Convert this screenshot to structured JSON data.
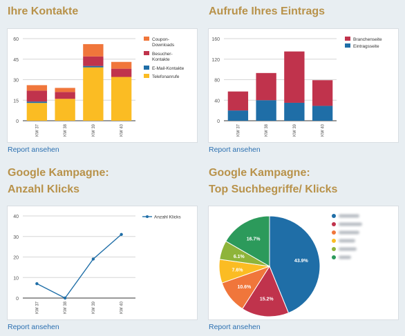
{
  "sections": {
    "contacts": {
      "title": "Ihre Kontakte",
      "link": "Report ansehen"
    },
    "views": {
      "title": "Aufrufe Ihres Eintrags",
      "link": "Report ansehen"
    },
    "clicks": {
      "title_line1": "Google Kampagne:",
      "title_line2": "Anzahl Klicks",
      "link": "Report ansehen"
    },
    "terms": {
      "title_line1": "Google Kampagne:",
      "title_line2": "Top Suchbegriffe/ Klicks",
      "link": "Report ansehen"
    }
  },
  "chart_data": [
    {
      "id": "contacts",
      "type": "bar",
      "stacked": true,
      "categories": [
        "KW 37",
        "KW 38",
        "KW 39",
        "KW 40"
      ],
      "ylim": [
        0,
        60
      ],
      "yticks": [
        0,
        15,
        30,
        45,
        60
      ],
      "legend_position": "right",
      "series": [
        {
          "name": "Telefonanrufe",
          "color": "#fbbc23",
          "values": [
            13,
            16,
            39,
            32
          ]
        },
        {
          "name": "E-Mail-Kontakte",
          "color": "#1f6ea7",
          "values": [
            1,
            0,
            1,
            0
          ]
        },
        {
          "name": "Besucher-Kontakte",
          "color": "#c0334c",
          "values": [
            8,
            5,
            7,
            6
          ]
        },
        {
          "name": "Coupon-Downloads",
          "color": "#f0763b",
          "values": [
            4,
            3,
            9,
            5
          ]
        }
      ],
      "legend_order": [
        3,
        2,
        1,
        0
      ],
      "legend_labels": [
        [
          "Coupon-",
          "Downloads"
        ],
        [
          "Besucher-",
          "Kontakte"
        ],
        [
          "E-Mail-Kontakte"
        ],
        [
          "Telefonanrufe"
        ]
      ]
    },
    {
      "id": "views",
      "type": "bar",
      "stacked": true,
      "categories": [
        "KW 37",
        "KW 38",
        "KW 39",
        "KW 40"
      ],
      "ylim": [
        0,
        160
      ],
      "yticks": [
        0,
        40,
        80,
        120,
        160
      ],
      "legend_position": "top-right",
      "series": [
        {
          "name": "Eintragsseite",
          "color": "#1f6ea7",
          "values": [
            20,
            40,
            35,
            29
          ]
        },
        {
          "name": "Branchenseite",
          "color": "#c0334c",
          "values": [
            37,
            53,
            100,
            50
          ]
        }
      ],
      "legend_order": [
        1,
        0
      ],
      "legend_labels": [
        [
          "Branchenseite"
        ],
        [
          "Eintragsseite"
        ]
      ]
    },
    {
      "id": "clicks",
      "type": "line",
      "categories": [
        "KW 37",
        "KW 38",
        "KW 39",
        "KW 40"
      ],
      "ylim": [
        0,
        40
      ],
      "yticks": [
        0,
        10,
        20,
        30,
        40
      ],
      "legend_position": "top-right",
      "series": [
        {
          "name": "Anzahl Klicks",
          "color": "#1f6ea7",
          "values": [
            7,
            0,
            19,
            31
          ]
        }
      ]
    },
    {
      "id": "terms",
      "type": "pie",
      "legend_position": "right",
      "slices": [
        {
          "label": "43.9%",
          "value": 43.9,
          "color": "#1f6ea7"
        },
        {
          "label": "15.2%",
          "value": 15.2,
          "color": "#c0334c"
        },
        {
          "label": "10.6%",
          "value": 10.6,
          "color": "#f0763b"
        },
        {
          "label": "7.6%",
          "value": 7.6,
          "color": "#fbbc23"
        },
        {
          "label": "6.1%",
          "value": 6.1,
          "color": "#8eb43a"
        },
        {
          "label": "16.7%",
          "value": 16.7,
          "color": "#2c9a5b"
        }
      ]
    }
  ]
}
